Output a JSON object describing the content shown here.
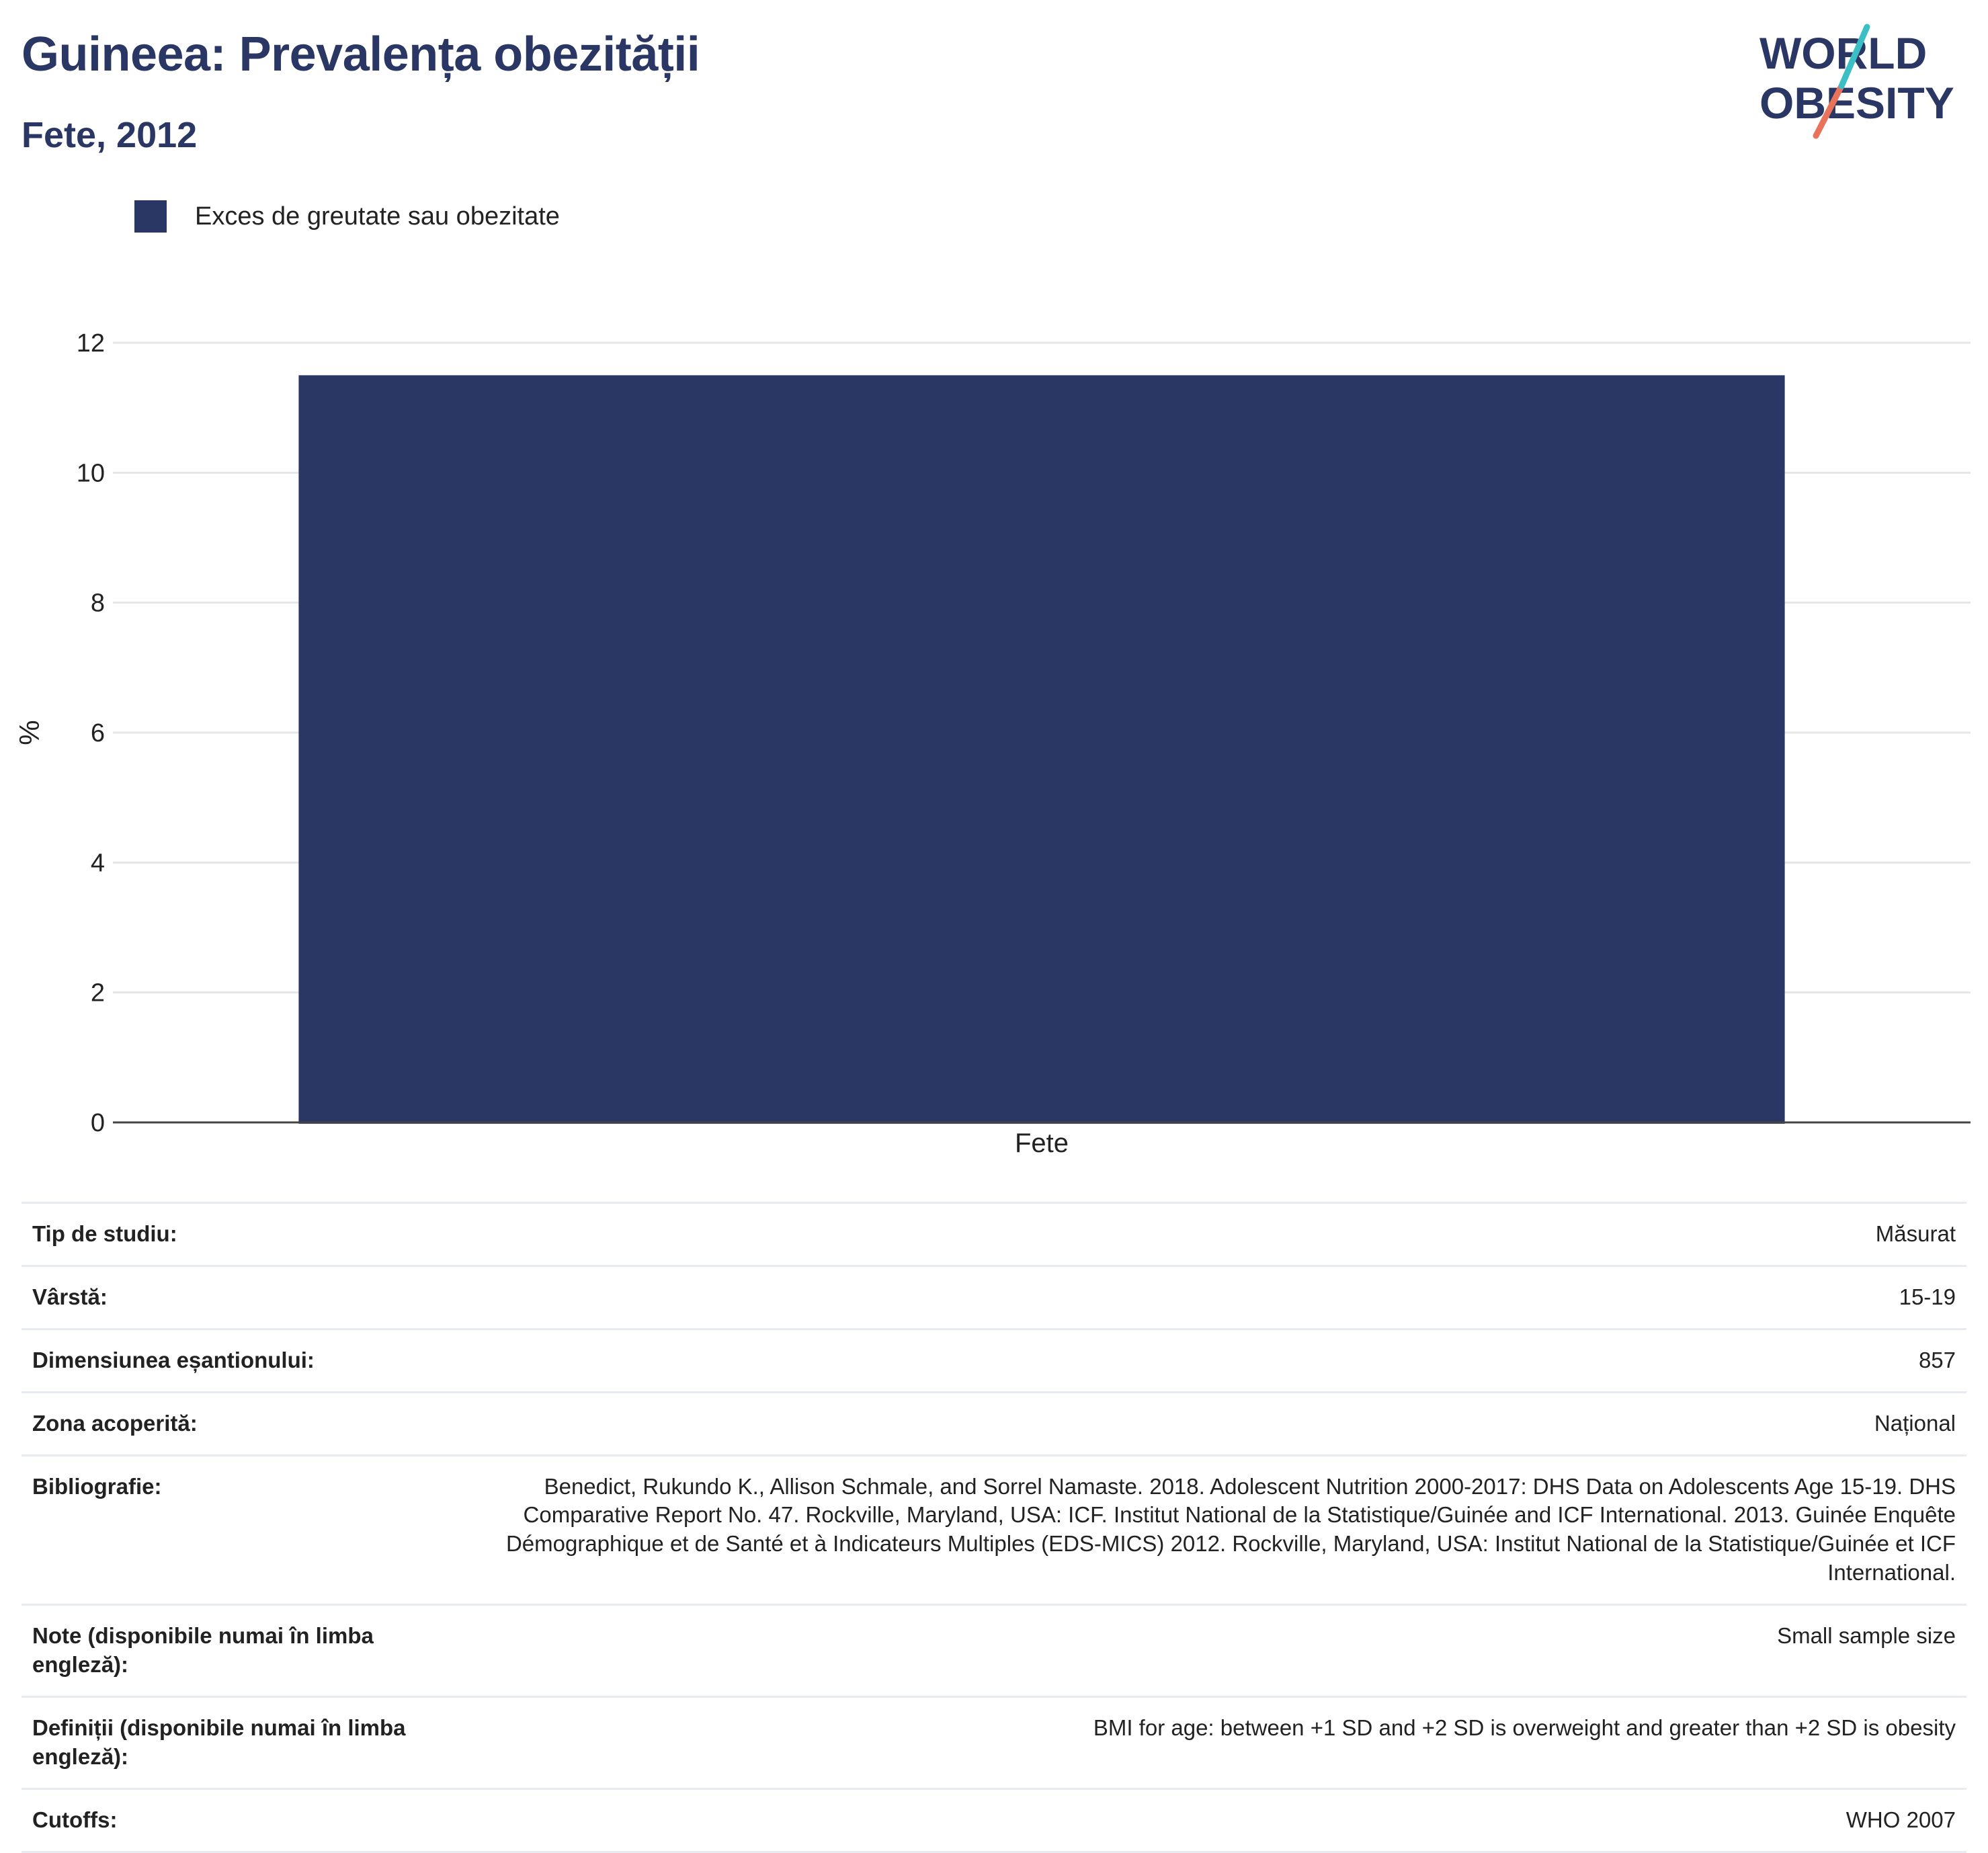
{
  "header": {
    "title": "Guineea: Prevalența obezității",
    "subtitle": "Fete, 2012"
  },
  "logo": {
    "line1": "WORLD",
    "line2": "OBESITY"
  },
  "colors": {
    "bar": "#2a3663",
    "title": "#2a3663",
    "logo_teal": "#3bbfc4",
    "logo_coral": "#e8735a"
  },
  "chart_data": {
    "type": "bar",
    "categories": [
      "Fete"
    ],
    "series": [
      {
        "name": "Exces de greutate sau obezitate",
        "values": [
          11.5
        ]
      }
    ],
    "xlabel": "",
    "ylabel": "%",
    "ylim": [
      0,
      12
    ],
    "yticks": [
      0,
      2,
      4,
      6,
      8,
      10,
      12
    ],
    "grid": true,
    "legend": "top-left"
  },
  "info": [
    {
      "key": "Tip de studiu:",
      "value": "Măsurat"
    },
    {
      "key": "Vârstă:",
      "value": "15-19"
    },
    {
      "key": "Dimensiunea eșantionului:",
      "value": "857"
    },
    {
      "key": "Zona acoperită:",
      "value": "Național"
    },
    {
      "key": "Bibliografie:",
      "value": "Benedict, Rukundo K., Allison Schmale, and Sorrel Namaste. 2018. Adolescent Nutrition 2000-2017: DHS Data on Adolescents Age 15-19. DHS Comparative Report No. 47. Rockville, Maryland, USA: ICF. Institut National de la Statistique/Guinée and ICF International. 2013. Guinée Enquête Démographique et de Santé et à Indicateurs Multiples (EDS-MICS) 2012. Rockville, Maryland, USA: Institut National de la Statistique/Guinée et ICF International."
    },
    {
      "key": "Note (disponibile numai în limba engleză):",
      "value": "Small sample size"
    },
    {
      "key": "Definiții (disponibile numai în limba engleză):",
      "value": "BMI for age: between +1 SD and +2 SD is overweight and greater than +2 SD is obesity"
    },
    {
      "key": "Cutoffs:",
      "value": "WHO 2007"
    }
  ]
}
